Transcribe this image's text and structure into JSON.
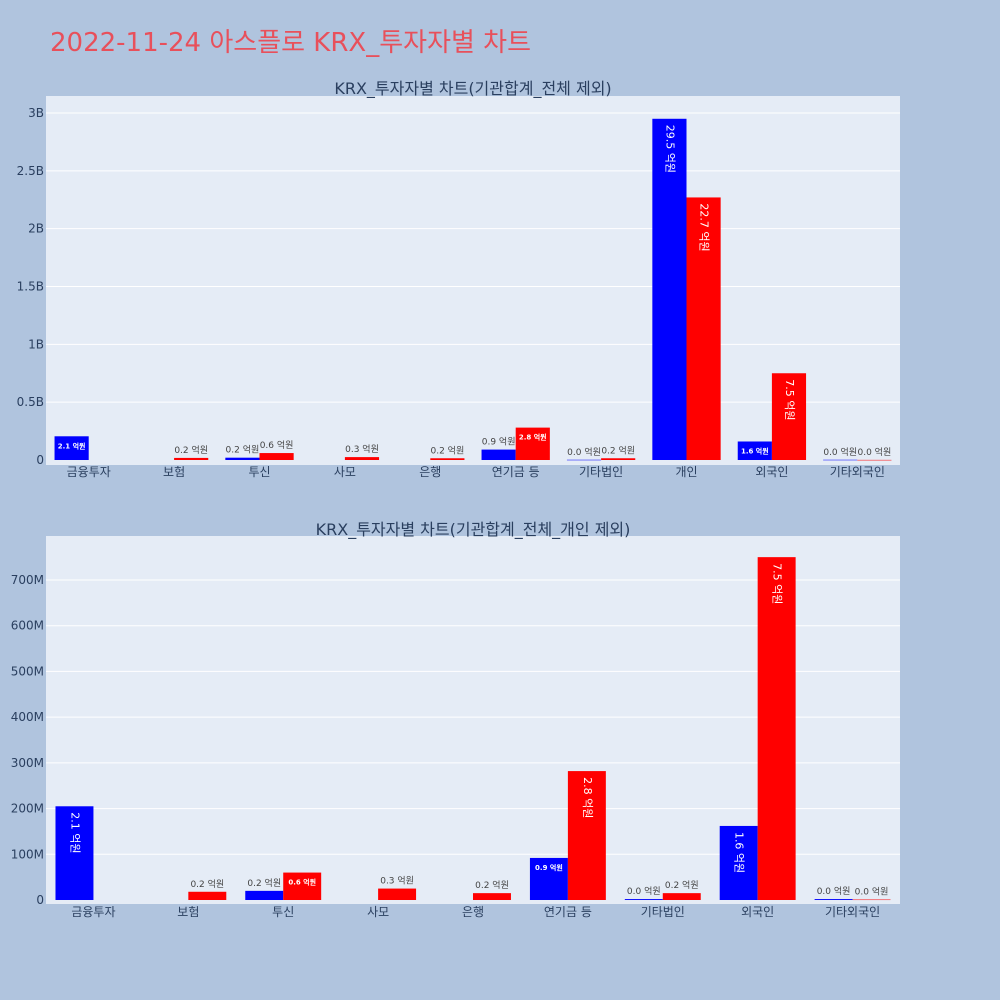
{
  "page": {
    "title": "2022-11-24 아스플로 KRX_투자자별 차트"
  },
  "colors": {
    "page_background": "#b0c4de",
    "plot_background": "#e5ecf6",
    "grid": "#ffffff",
    "series_buy": "#0000ff",
    "series_sell": "#ff0000",
    "title": "#e8505b",
    "text": "#2a3f5f"
  },
  "chart_data": [
    {
      "type": "bar",
      "title": "KRX_투자자별 차트(기관합계_전체 제외)",
      "categories": [
        "금융투자",
        "보험",
        "투신",
        "사모",
        "은행",
        "연기금 등",
        "기타법인",
        "개인",
        "외국인",
        "기타외국인"
      ],
      "series": [
        {
          "color": "#0000ff",
          "values": [
            205000000,
            0,
            20000000,
            0,
            0,
            90000000,
            2000000,
            2950000000,
            160000000,
            2000000
          ],
          "labels": [
            "2.1 억원",
            "",
            "0.2 억원",
            "",
            "",
            "0.9 억원",
            "0.0 억원",
            "29.5 억원",
            "1.6 억원",
            "0.0 억원"
          ]
        },
        {
          "color": "#ff0000",
          "values": [
            0,
            18000000,
            60000000,
            25000000,
            15000000,
            280000000,
            15000000,
            2270000000,
            750000000,
            1000000
          ],
          "labels": [
            "",
            "0.2 억원",
            "0.6 억원",
            "0.3 억원",
            "0.2 억원",
            "2.8 억원",
            "0.2 억원",
            "22.7 억원",
            "7.5 억원",
            "0.0 억원"
          ]
        }
      ],
      "ylim": [
        0,
        3150000000
      ],
      "yticks": [
        0,
        500000000,
        1000000000,
        1500000000,
        2000000000,
        2500000000,
        3000000000
      ],
      "ytick_labels": [
        "0",
        "0.5B",
        "1B",
        "1.5B",
        "2B",
        "2.5B",
        "3B"
      ],
      "grid": true,
      "legend": "none"
    },
    {
      "type": "bar",
      "title": "KRX_투자자별 차트(기관합계_전체_개인 제외)",
      "categories": [
        "금융투자",
        "보험",
        "투신",
        "사모",
        "은행",
        "연기금 등",
        "기타법인",
        "외국인",
        "기타외국인"
      ],
      "series": [
        {
          "color": "#0000ff",
          "values": [
            205000000,
            0,
            20000000,
            0,
            0,
            92000000,
            2000000,
            162000000,
            2000000
          ],
          "labels": [
            "2.1 억원",
            "",
            "0.2 억원",
            "",
            "",
            "0.9 억원",
            "0.0 억원",
            "1.6 억원",
            "0.0 억원"
          ]
        },
        {
          "color": "#ff0000",
          "values": [
            0,
            18000000,
            60000000,
            25000000,
            15000000,
            282000000,
            15000000,
            750000000,
            1000000
          ],
          "labels": [
            "",
            "0.2 억원",
            "0.6 억원",
            "0.3 억원",
            "0.2 억원",
            "2.8 억원",
            "0.2 억원",
            "7.5 억원",
            "0.0 억원"
          ]
        }
      ],
      "ylim": [
        0,
        790000000
      ],
      "yticks": [
        0,
        100000000,
        200000000,
        300000000,
        400000000,
        500000000,
        600000000,
        700000000
      ],
      "ytick_labels": [
        "0",
        "100M",
        "200M",
        "300M",
        "400M",
        "500M",
        "600M",
        "700M"
      ],
      "grid": true,
      "legend": "none"
    }
  ]
}
